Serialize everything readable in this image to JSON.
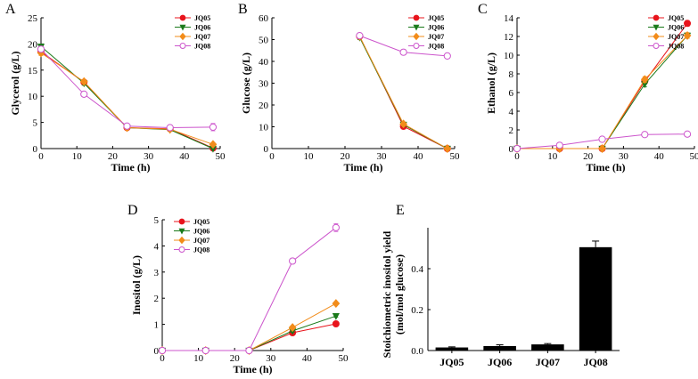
{
  "chart_data": [
    {
      "panel": "A",
      "type": "line",
      "xlabel": "Time (h)",
      "ylabel": "Glycerol (g/L)",
      "xlim": [
        0,
        50
      ],
      "ylim": [
        0,
        25
      ],
      "xticks": [
        0,
        10,
        20,
        30,
        40,
        50
      ],
      "yticks": [
        0,
        5,
        10,
        15,
        20,
        25
      ],
      "legend_position": "top-right",
      "series": [
        {
          "name": "JQ05",
          "x": [
            0,
            12,
            24,
            36,
            48
          ],
          "y": [
            18.5,
            12.7,
            4.0,
            3.8,
            0.1
          ],
          "err": [
            0.5,
            0.4,
            0.3,
            0.3,
            0.2
          ]
        },
        {
          "name": "JQ06",
          "x": [
            0,
            12,
            24,
            36,
            48
          ],
          "y": [
            19.5,
            12.5,
            4.0,
            3.6,
            0.0
          ],
          "err": [
            0.5,
            0.4,
            0.3,
            0.3,
            0.2
          ]
        },
        {
          "name": "JQ07",
          "x": [
            0,
            12,
            24,
            36,
            48
          ],
          "y": [
            18.3,
            12.8,
            4.0,
            3.7,
            0.8
          ],
          "err": [
            0.5,
            0.4,
            0.3,
            0.3,
            0.2
          ]
        },
        {
          "name": "JQ08",
          "x": [
            0,
            12,
            24,
            36,
            48
          ],
          "y": [
            19.0,
            10.4,
            4.3,
            4.0,
            4.1
          ],
          "err": [
            0.5,
            0.4,
            0.4,
            0.5,
            0.7
          ]
        }
      ]
    },
    {
      "panel": "B",
      "type": "line",
      "xlabel": "Time (h)",
      "ylabel": "Glucose (g/L)",
      "xlim": [
        0,
        50
      ],
      "ylim": [
        0,
        60
      ],
      "xticks": [
        0,
        10,
        20,
        30,
        40,
        50
      ],
      "yticks": [
        0,
        10,
        20,
        30,
        40,
        50,
        60
      ],
      "legend_position": "top-right",
      "series": [
        {
          "name": "JQ05",
          "x": [
            24,
            36,
            48
          ],
          "y": [
            51.5,
            10.2,
            0.0
          ],
          "err": [
            1.0,
            0.8,
            0.3
          ]
        },
        {
          "name": "JQ06",
          "x": [
            24,
            36,
            48
          ],
          "y": [
            51.0,
            11.0,
            0.0
          ],
          "err": [
            1.0,
            0.8,
            0.3
          ]
        },
        {
          "name": "JQ07",
          "x": [
            24,
            36,
            48
          ],
          "y": [
            51.5,
            11.3,
            0.0
          ],
          "err": [
            1.0,
            0.8,
            0.3
          ]
        },
        {
          "name": "JQ08",
          "x": [
            24,
            36,
            48
          ],
          "y": [
            51.8,
            44.2,
            42.5
          ],
          "err": [
            1.2,
            1.2,
            1.2
          ]
        }
      ]
    },
    {
      "panel": "C",
      "type": "line",
      "xlabel": "Time (h)",
      "ylabel": "Ethanol (g/L)",
      "xlim": [
        0,
        50
      ],
      "ylim": [
        0,
        14
      ],
      "xticks": [
        0,
        10,
        20,
        30,
        40,
        50
      ],
      "yticks": [
        0,
        2,
        4,
        6,
        8,
        10,
        12,
        14
      ],
      "legend_position": "top-right",
      "series": [
        {
          "name": "JQ05",
          "x": [
            0,
            12,
            24,
            36,
            48
          ],
          "y": [
            0.0,
            0.0,
            0.0,
            7.2,
            13.4
          ],
          "err": [
            0.05,
            0.05,
            0.05,
            0.3,
            0.3
          ]
        },
        {
          "name": "JQ06",
          "x": [
            0,
            12,
            24,
            36,
            48
          ],
          "y": [
            0.0,
            0.0,
            0.0,
            6.9,
            12.1
          ],
          "err": [
            0.05,
            0.05,
            0.05,
            0.3,
            0.3
          ]
        },
        {
          "name": "JQ07",
          "x": [
            0,
            12,
            24,
            36,
            48
          ],
          "y": [
            0.0,
            0.0,
            0.0,
            7.4,
            12.1
          ],
          "err": [
            0.05,
            0.05,
            0.05,
            0.3,
            0.3
          ]
        },
        {
          "name": "JQ08",
          "x": [
            0,
            12,
            24,
            36,
            48
          ],
          "y": [
            0.0,
            0.35,
            1.0,
            1.5,
            1.55
          ],
          "err": [
            0.05,
            0.2,
            0.2,
            0.2,
            0.25
          ]
        }
      ]
    },
    {
      "panel": "D",
      "type": "line",
      "xlabel": "Time (h)",
      "ylabel": "Inositol (g/L)",
      "xlim": [
        0,
        50
      ],
      "ylim": [
        0,
        5
      ],
      "xticks": [
        0,
        10,
        20,
        30,
        40,
        50
      ],
      "yticks": [
        0,
        1,
        2,
        3,
        4,
        5
      ],
      "legend_position": "top-left",
      "series": [
        {
          "name": "JQ05",
          "x": [
            0,
            12,
            24,
            36,
            48
          ],
          "y": [
            0,
            0,
            0,
            0.68,
            1.02
          ],
          "err": [
            0.02,
            0.02,
            0.02,
            0.05,
            0.05
          ]
        },
        {
          "name": "JQ06",
          "x": [
            0,
            12,
            24,
            36,
            48
          ],
          "y": [
            0,
            0,
            0,
            0.75,
            1.32
          ],
          "err": [
            0.02,
            0.02,
            0.02,
            0.05,
            0.05
          ]
        },
        {
          "name": "JQ07",
          "x": [
            0,
            12,
            24,
            36,
            48
          ],
          "y": [
            0,
            0,
            0,
            0.88,
            1.8
          ],
          "err": [
            0.02,
            0.02,
            0.02,
            0.05,
            0.05
          ]
        },
        {
          "name": "JQ08",
          "x": [
            0,
            12,
            24,
            36,
            48
          ],
          "y": [
            0,
            0,
            0,
            3.42,
            4.7
          ],
          "err": [
            0.02,
            0.02,
            0.02,
            0.08,
            0.15
          ]
        }
      ]
    },
    {
      "panel": "E",
      "type": "bar",
      "ylabel_line1": "Stoichiometric inositol yield",
      "ylabel_line2": "(mol/mol glucose)",
      "categories": [
        "JQ05",
        "JQ06",
        "JQ07",
        "JQ08"
      ],
      "values": [
        0.015,
        0.022,
        0.03,
        0.505
      ],
      "err": [
        0.003,
        0.006,
        0.004,
        0.03
      ],
      "ylim": [
        0,
        0.6
      ],
      "yticks": [
        0.0,
        0.2,
        0.4
      ],
      "ytick_labels": [
        "0.0",
        "0.2",
        "0.4"
      ],
      "bar_color": "#000000"
    }
  ],
  "series_styles": {
    "JQ05": {
      "color": "#e8141c",
      "marker": "circle-filled"
    },
    "JQ06": {
      "color": "#1a7a1a",
      "marker": "triangle-down-filled"
    },
    "JQ07": {
      "color": "#f28c1a",
      "marker": "diamond-filled"
    },
    "JQ08": {
      "color": "#cc55cc",
      "marker": "circle-open"
    }
  }
}
